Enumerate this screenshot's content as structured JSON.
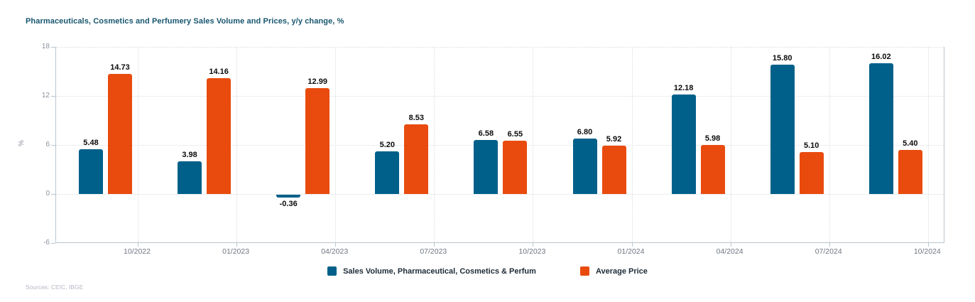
{
  "header": {
    "title": "Pharmaceuticals, Cosmetics and Perfumery Sales Volume and Prices, y/y change, %"
  },
  "chart_data": {
    "type": "bar",
    "title": "Pharmaceuticals, Cosmetics and Perfumery Sales Volume and Prices, y/y change, %",
    "xlabel": "",
    "ylabel": "%",
    "ylim": [
      -6,
      18
    ],
    "yticks": [
      18,
      12,
      6,
      0,
      -6
    ],
    "grid": "dotted horizontal and vertical gridlines",
    "legend_position": "bottom-center",
    "value_labels": true,
    "categories": [
      "10/2022",
      "01/2023",
      "04/2023",
      "07/2023",
      "10/2023",
      "01/2024",
      "04/2024",
      "07/2024",
      "10/2024"
    ],
    "series": [
      {
        "name": "Sales Volume, Pharmaceutical, Cosmetics & Perfum",
        "color": "#01608A",
        "values": [
          5.48,
          3.98,
          -0.36,
          5.2,
          6.58,
          6.8,
          12.18,
          15.8,
          16.02
        ]
      },
      {
        "name": "Average Price",
        "color": "#E94B0E",
        "values": [
          14.73,
          14.16,
          12.99,
          8.53,
          6.55,
          5.92,
          5.98,
          5.1,
          5.4
        ]
      }
    ],
    "value_label_format": "2 decimals"
  },
  "footer": {
    "sources": "Sources: CEIC, IBGE"
  },
  "colors": {
    "title": "#17566F",
    "axis_line": "#b9c5ce",
    "gridline": "#d9dde3",
    "y_tick_label": "#8b919c",
    "x_tick_label": "#6e7681",
    "bar_value_label": "#0b0b0b",
    "legend_text": "#1d2b36",
    "sources_text": "#b4b8c5",
    "background": "#ffffff"
  }
}
